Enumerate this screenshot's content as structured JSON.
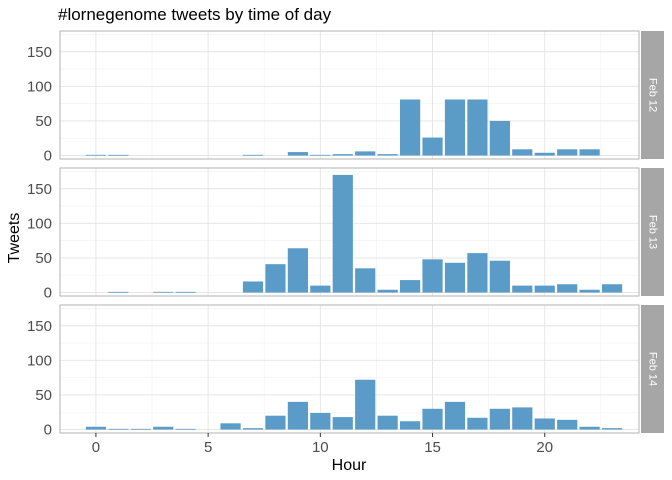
{
  "chart_data": {
    "type": "bar",
    "title": "#lornegenome tweets by time of day",
    "xlabel": "Hour",
    "ylabel": "Tweets",
    "xlim": [
      -1.6,
      24.2
    ],
    "ylim": [
      -5,
      180
    ],
    "x_ticks": [
      0,
      5,
      10,
      15,
      20
    ],
    "y_ticks": [
      0,
      50,
      100,
      150
    ],
    "color": "#5b9bc8",
    "strip_color": "#a6a6a6",
    "grid": true,
    "facet_position": "right",
    "facets": [
      {
        "label": "Feb 12",
        "x": [
          0,
          1,
          7,
          9,
          10,
          11,
          12,
          13,
          14,
          15,
          16,
          17,
          18,
          19,
          20,
          21,
          22
        ],
        "values": [
          1,
          1,
          1,
          5,
          1,
          2,
          6,
          2,
          81,
          26,
          81,
          81,
          50,
          9,
          4,
          9,
          9
        ]
      },
      {
        "label": "Feb 13",
        "x": [
          1,
          3,
          4,
          7,
          8,
          9,
          10,
          11,
          12,
          13,
          14,
          15,
          16,
          17,
          18,
          19,
          20,
          21,
          22,
          23
        ],
        "values": [
          1,
          1,
          1,
          16,
          41,
          64,
          10,
          170,
          35,
          4,
          18,
          48,
          43,
          57,
          46,
          10,
          10,
          12,
          4,
          12
        ]
      },
      {
        "label": "Feb 14",
        "x": [
          0,
          1,
          2,
          3,
          4,
          6,
          7,
          8,
          9,
          10,
          11,
          12,
          13,
          14,
          15,
          16,
          17,
          18,
          19,
          20,
          21,
          22,
          23
        ],
        "values": [
          4,
          1,
          1,
          4,
          1,
          9,
          2,
          20,
          40,
          24,
          18,
          72,
          20,
          12,
          30,
          40,
          17,
          30,
          32,
          16,
          14,
          4,
          2
        ]
      }
    ]
  }
}
